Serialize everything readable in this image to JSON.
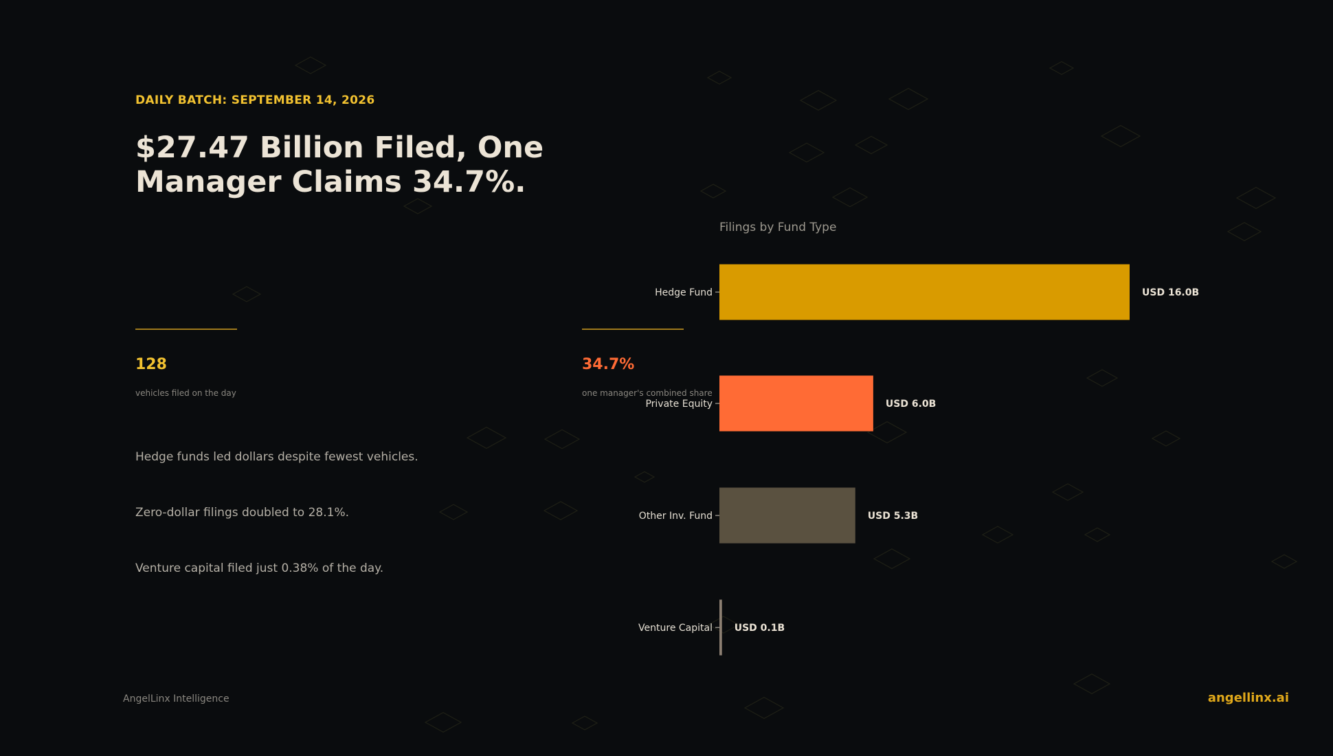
{
  "header": {
    "eyebrow": "DAILY BATCH: SEPTEMBER 14, 2026",
    "headline": "$27.47 Billion Filed, One Manager Claims 34.7%."
  },
  "stats": [
    {
      "value": "128",
      "caption": "vehicles filed on the day",
      "color": "#f2c230"
    },
    {
      "value": "34.7%",
      "caption": "one manager's combined share",
      "color": "#ff6b35"
    }
  ],
  "bullets": [
    "Hedge funds led dollars despite fewest vehicles.",
    "Zero-dollar filings doubled to 28.1%.",
    "Venture capital filed just 0.38% of the day."
  ],
  "footer": {
    "brand": "AngelLinx Intelligence",
    "site": "angellinx.ai"
  },
  "colors": {
    "background": "#0a0c0e",
    "accent_gold": "#f2c230",
    "accent_orange": "#ff6b35"
  },
  "chart_data": {
    "type": "bar",
    "orientation": "horizontal",
    "title": "Filings by Fund Type",
    "categories": [
      "Hedge Fund",
      "Private Equity",
      "Other Inv. Fund",
      "Venture Capital"
    ],
    "values": [
      16.0,
      6.0,
      5.3,
      0.1
    ],
    "value_labels": [
      "USD 16.0B",
      "USD 6.0B",
      "USD 5.3B",
      "USD 0.1B"
    ],
    "colors": [
      "#d99b00",
      "#ff6b35",
      "#5a5140",
      "#8c7f72"
    ],
    "xlabel": "",
    "ylabel": "",
    "xlim": [
      0,
      16.0
    ],
    "grid": false,
    "legend": "none"
  }
}
